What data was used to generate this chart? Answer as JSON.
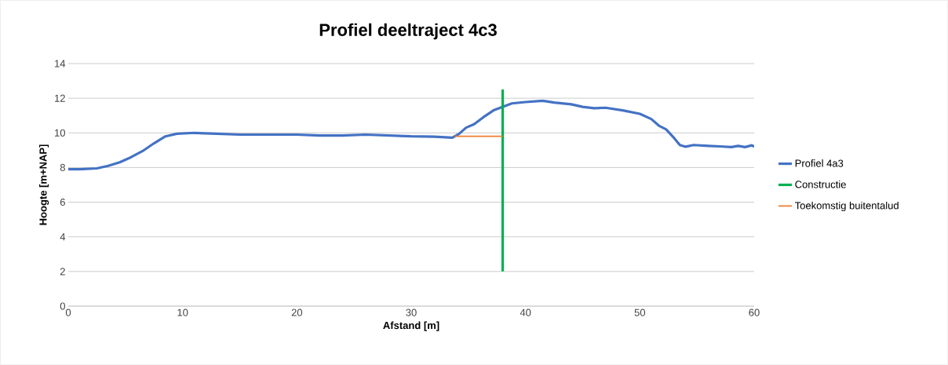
{
  "chart_data": {
    "type": "line",
    "title": "Profiel deeltraject 4c3",
    "xlabel": "Afstand [m]",
    "ylabel": "Hoogte [m+NAP]",
    "xlim": [
      0,
      60
    ],
    "xticks": [
      0,
      10,
      20,
      30,
      40,
      50,
      60
    ],
    "ylim": [
      0,
      14
    ],
    "yticks": [
      0,
      2,
      4,
      6,
      8,
      10,
      12,
      14
    ],
    "grid": "y",
    "legend": "right",
    "series": [
      {
        "name": "Profiel 4a3",
        "color": "#4472c4",
        "x": [
          0,
          1,
          2.5,
          3.5,
          4.5,
          5.5,
          6.5,
          7.5,
          8.5,
          9.5,
          11,
          13,
          15,
          18,
          20,
          22,
          24,
          26,
          28,
          30,
          32,
          33.6,
          34.2,
          34.8,
          35.5,
          36.3,
          37.2,
          38,
          38.8,
          40,
          41.5,
          42.5,
          44,
          45,
          46,
          47,
          48.5,
          50,
          51,
          51.7,
          52.3,
          53,
          53.5,
          54,
          54.7,
          56,
          57,
          58,
          58.6,
          59.2,
          59.8,
          60
        ],
        "values": [
          7.9,
          7.9,
          7.95,
          8.1,
          8.3,
          8.6,
          8.95,
          9.4,
          9.8,
          9.95,
          10.0,
          9.95,
          9.9,
          9.9,
          9.9,
          9.85,
          9.85,
          9.9,
          9.85,
          9.8,
          9.78,
          9.72,
          9.95,
          10.3,
          10.5,
          10.9,
          11.3,
          11.5,
          11.7,
          11.78,
          11.85,
          11.75,
          11.65,
          11.5,
          11.42,
          11.45,
          11.3,
          11.1,
          10.8,
          10.4,
          10.2,
          9.7,
          9.3,
          9.2,
          9.3,
          9.25,
          9.22,
          9.18,
          9.25,
          9.18,
          9.28,
          9.2
        ]
      },
      {
        "name": "Constructie",
        "color": "#00b050",
        "x": [
          38,
          38
        ],
        "values": [
          2,
          12.5
        ]
      },
      {
        "name": "Toekomstig buitentalud",
        "color": "#ed7d31",
        "x": [
          33.8,
          38
        ],
        "values": [
          9.8,
          9.8
        ]
      }
    ]
  }
}
